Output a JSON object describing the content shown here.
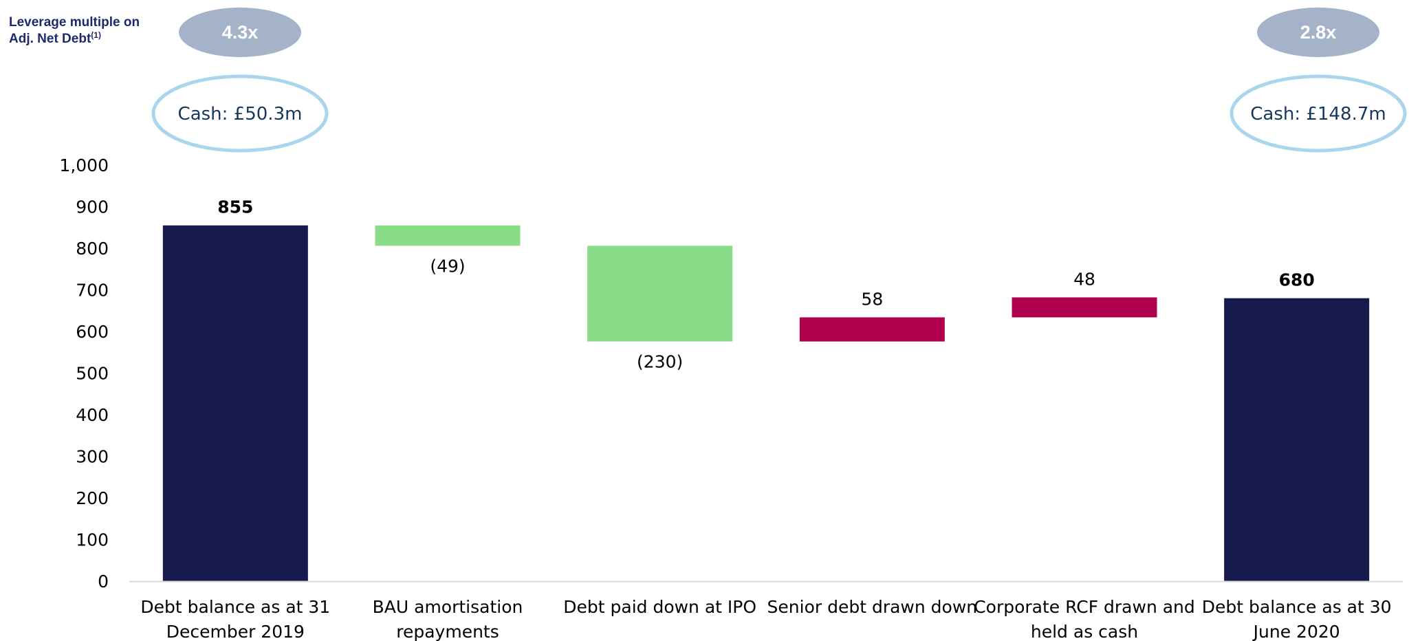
{
  "leverage": {
    "label_line1": "Leverage multiple on",
    "label_line2": "Adj. Net Debt",
    "label_sup": "(1)",
    "start_value": "4.3x",
    "end_value": "2.8x",
    "pill_color": "#a5b3c8"
  },
  "cash": {
    "start_label": "Cash: £50.3m",
    "end_label": "Cash: £148.7m",
    "ring_color": "#a9d6ee"
  },
  "colors": {
    "total": "#15194b",
    "decrease": "#8add88",
    "increase": "#b0004e",
    "axis": "#d9d9d9"
  },
  "chart_data": {
    "type": "bar",
    "subtype": "waterfall",
    "ylim": [
      0,
      1000
    ],
    "ytick_labels": [
      "0",
      "100",
      "200",
      "300",
      "400",
      "500",
      "600",
      "700",
      "800",
      "900",
      "1,000"
    ],
    "grid": false,
    "categories": [
      [
        "Debt balance as at 31",
        "December 2019"
      ],
      [
        "BAU amortisation",
        "repayments"
      ],
      [
        "Debt paid down at IPO"
      ],
      [
        "Senior debt drawn down"
      ],
      [
        "Corporate RCF drawn and",
        "held as cash"
      ],
      [
        "Debt balance as at 30",
        "June 2020"
      ]
    ],
    "bars": [
      {
        "kind": "total",
        "start": 0,
        "end": 855,
        "label": "855"
      },
      {
        "kind": "decrease",
        "start": 855,
        "end": 806,
        "label": "(49)"
      },
      {
        "kind": "decrease",
        "start": 806,
        "end": 576,
        "label": "(230)"
      },
      {
        "kind": "increase",
        "start": 576,
        "end": 634,
        "label": "58"
      },
      {
        "kind": "increase",
        "start": 634,
        "end": 682,
        "label": "48"
      },
      {
        "kind": "total",
        "start": 0,
        "end": 680,
        "label": "680"
      }
    ]
  }
}
